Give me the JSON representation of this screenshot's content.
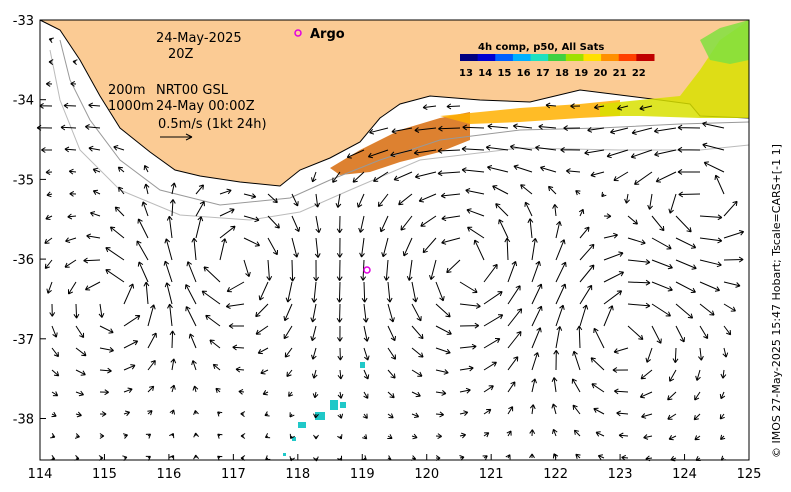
{
  "map": {
    "lon_ticks": [
      "114",
      "115",
      "116",
      "117",
      "118",
      "119",
      "120",
      "121",
      "122",
      "123",
      "124",
      "125"
    ],
    "lat_ticks": [
      "-33",
      "-34",
      "-35",
      "-36",
      "-37",
      "-38"
    ],
    "date_line": "24-May-2025",
    "time_line": "20Z",
    "depth_200": "200m",
    "depth_1000": "1000m",
    "model_line": "NRT00 GSL",
    "model_time": "24-May 00:00Z",
    "scale_label": "0.5m/s (1kt 24h)",
    "argo_label": "Argo",
    "credit": "© IMOS 27-May-2025 15:47 Hobart; Tscale=CARS+[-1 1]",
    "colorbar": {
      "title": "4h comp, p50, All Sats",
      "labels": [
        "13",
        "14",
        "15",
        "16",
        "17",
        "18",
        "19",
        "20",
        "21",
        "22"
      ],
      "colors": [
        "#000080",
        "#0000d0",
        "#0060ff",
        "#00b0ff",
        "#20e0c0",
        "#40d040",
        "#a0e000",
        "#ffe000",
        "#ff9000",
        "#ff4000",
        "#c00000"
      ]
    },
    "colors": {
      "land": "#fbcb94",
      "coast": "#000000",
      "warm_sst": "#d9731a",
      "cool_sst": "#20c8c8"
    }
  }
}
